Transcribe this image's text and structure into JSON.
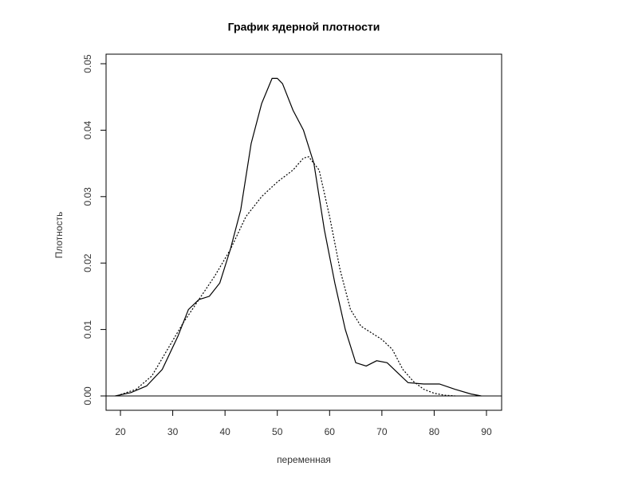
{
  "chart_data": {
    "type": "line",
    "title": "График ядерной плотности",
    "xlabel": "переменная",
    "ylabel": "Плотность",
    "xlim": [
      17.25,
      92.9
    ],
    "ylim": [
      -0.00216,
      0.05144
    ],
    "xticks": [
      20,
      30,
      40,
      50,
      60,
      70,
      80,
      90
    ],
    "yticks": [
      {
        "value": 0,
        "label": "0.00"
      },
      0.01,
      0.02,
      0.03,
      0.04,
      0.05
    ],
    "hline": 0,
    "series": [
      {
        "color": "#000000",
        "line_style": "solid",
        "x": [
          19,
          22,
          25,
          28,
          31,
          33,
          35,
          37,
          39,
          41,
          43,
          45,
          47,
          49,
          50,
          51,
          53,
          55,
          57,
          59,
          61,
          63,
          65,
          67,
          69,
          71,
          73,
          75,
          78,
          81,
          84,
          87,
          89
        ],
        "values": [
          0,
          0.0005,
          0.0015,
          0.004,
          0.009,
          0.013,
          0.0145,
          0.015,
          0.017,
          0.022,
          0.028,
          0.038,
          0.044,
          0.0478,
          0.0478,
          0.047,
          0.043,
          0.04,
          0.035,
          0.025,
          0.017,
          0.01,
          0.005,
          0.0045,
          0.0053,
          0.005,
          0.0035,
          0.002,
          0.0018,
          0.0018,
          0.001,
          0.0003,
          0
        ]
      },
      {
        "color": "#000000",
        "line_style": "dashed",
        "x": [
          20,
          23,
          26,
          29,
          32,
          35,
          38,
          41,
          44,
          47,
          50,
          53,
          55,
          56,
          58,
          60,
          62,
          64,
          66,
          68,
          70,
          72,
          74,
          76,
          78,
          80,
          82,
          84
        ],
        "values": [
          0.0002,
          0.001,
          0.003,
          0.007,
          0.011,
          0.0145,
          0.018,
          0.022,
          0.027,
          0.03,
          0.0322,
          0.034,
          0.0358,
          0.036,
          0.034,
          0.027,
          0.019,
          0.013,
          0.0105,
          0.0095,
          0.0085,
          0.007,
          0.004,
          0.0022,
          0.001,
          0.0004,
          0.0001,
          0
        ]
      }
    ]
  }
}
